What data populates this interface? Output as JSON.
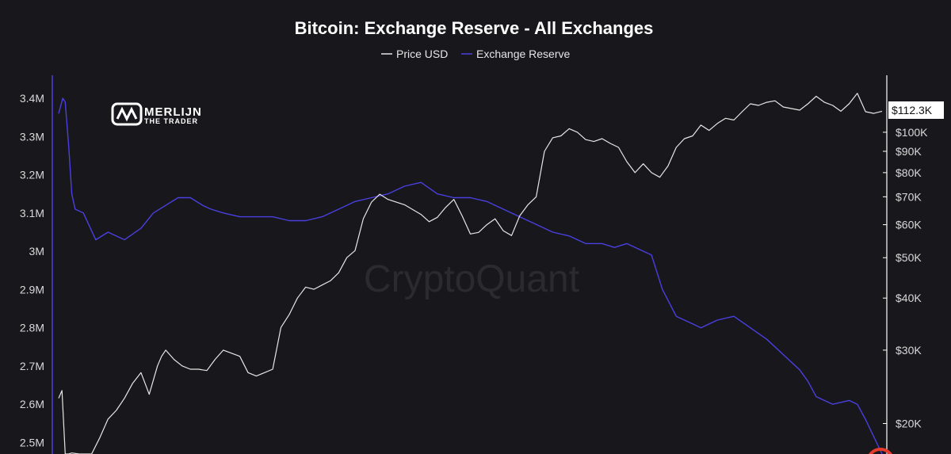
{
  "chart_data": {
    "type": "line",
    "title": "Bitcoin: Exchange Reserve - All Exchanges",
    "legend": {
      "placement": "top-center",
      "entries": [
        {
          "name": "Price USD",
          "color": "#e6e6e6"
        },
        {
          "name": "Exchange Reserve",
          "color": "#4a3fe0"
        }
      ]
    },
    "watermark": "CryptoQuant",
    "logo": {
      "line1": "MERLIJN",
      "line2": "THE TRADER"
    },
    "last_price_label": "$112.3K",
    "grid": false,
    "left_axis": {
      "scale": "linear",
      "range": [
        2470000,
        3460000
      ],
      "ticks": [
        {
          "value": 3400000,
          "label": "3.4M"
        },
        {
          "value": 3300000,
          "label": "3.3M"
        },
        {
          "value": 3200000,
          "label": "3.2M"
        },
        {
          "value": 3100000,
          "label": "3.1M"
        },
        {
          "value": 3000000,
          "label": "3M"
        },
        {
          "value": 2900000,
          "label": "2.9M"
        },
        {
          "value": 2800000,
          "label": "2.8M"
        },
        {
          "value": 2700000,
          "label": "2.7M"
        },
        {
          "value": 2600000,
          "label": "2.6M"
        },
        {
          "value": 2500000,
          "label": "2.5M"
        }
      ]
    },
    "right_axis": {
      "scale": "log",
      "range": [
        16900,
        137000
      ],
      "ticks": [
        {
          "value": 100000,
          "label": "$100K"
        },
        {
          "value": 90000,
          "label": "$90K"
        },
        {
          "value": 80000,
          "label": "$80K"
        },
        {
          "value": 70000,
          "label": "$70K"
        },
        {
          "value": 60000,
          "label": "$60K"
        },
        {
          "value": 50000,
          "label": "$50K"
        },
        {
          "value": 40000,
          "label": "$40K"
        },
        {
          "value": 30000,
          "label": "$30K"
        },
        {
          "value": 20000,
          "label": "$20K"
        }
      ]
    },
    "series": [
      {
        "name": "Exchange Reserve",
        "axis": "left",
        "color": "#4a3fe0",
        "t": [
          0,
          0.005,
          0.008,
          0.012,
          0.016,
          0.02,
          0.03,
          0.045,
          0.06,
          0.08,
          0.1,
          0.115,
          0.13,
          0.145,
          0.16,
          0.175,
          0.185,
          0.2,
          0.22,
          0.24,
          0.26,
          0.28,
          0.3,
          0.32,
          0.34,
          0.36,
          0.38,
          0.4,
          0.42,
          0.44,
          0.46,
          0.48,
          0.5,
          0.52,
          0.54,
          0.56,
          0.58,
          0.6,
          0.62,
          0.64,
          0.66,
          0.675,
          0.69,
          0.7,
          0.72,
          0.7333,
          0.75,
          0.77,
          0.78,
          0.8,
          0.82,
          0.84,
          0.86,
          0.88,
          0.9,
          0.91,
          0.92,
          0.94,
          0.96,
          0.97,
          0.98,
          1.0
        ],
        "values": [
          3360000,
          3400000,
          3390000,
          3280000,
          3150000,
          3110000,
          3100000,
          3030000,
          3050000,
          3030000,
          3060000,
          3100000,
          3120000,
          3140000,
          3140000,
          3120000,
          3110000,
          3100000,
          3090000,
          3090000,
          3090000,
          3080000,
          3080000,
          3090000,
          3110000,
          3130000,
          3140000,
          3150000,
          3170000,
          3180000,
          3150000,
          3140000,
          3140000,
          3130000,
          3110000,
          3090000,
          3070000,
          3050000,
          3040000,
          3020000,
          3020000,
          3010000,
          3020000,
          3010000,
          2990000,
          2900000,
          2830000,
          2810000,
          2800000,
          2820000,
          2830000,
          2800000,
          2770000,
          2730000,
          2690000,
          2660000,
          2620000,
          2600000,
          2610000,
          2600000,
          2560000,
          2470000
        ]
      },
      {
        "name": "Price USD",
        "axis": "right",
        "color": "#e6e6e6",
        "t": [
          0,
          0.004,
          0.008,
          0.012,
          0.016,
          0.025,
          0.04,
          0.05,
          0.06,
          0.07,
          0.08,
          0.09,
          0.1,
          0.11,
          0.12,
          0.125,
          0.13,
          0.14,
          0.15,
          0.16,
          0.17,
          0.18,
          0.19,
          0.2,
          0.21,
          0.22,
          0.23,
          0.24,
          0.25,
          0.26,
          0.27,
          0.28,
          0.29,
          0.3,
          0.31,
          0.32,
          0.33,
          0.34,
          0.35,
          0.36,
          0.37,
          0.38,
          0.39,
          0.4,
          0.42,
          0.44,
          0.45,
          0.46,
          0.47,
          0.48,
          0.49,
          0.5,
          0.51,
          0.52,
          0.53,
          0.54,
          0.55,
          0.56,
          0.57,
          0.58,
          0.59,
          0.6,
          0.61,
          0.62,
          0.63,
          0.64,
          0.65,
          0.66,
          0.67,
          0.68,
          0.69,
          0.7,
          0.71,
          0.72,
          0.73,
          0.74,
          0.75,
          0.76,
          0.77,
          0.78,
          0.79,
          0.8,
          0.81,
          0.82,
          0.83,
          0.84,
          0.85,
          0.86,
          0.87,
          0.88,
          0.89,
          0.9,
          0.91,
          0.92,
          0.93,
          0.94,
          0.95,
          0.96,
          0.97,
          0.98,
          0.99,
          1.0
        ],
        "values": [
          23000,
          24000,
          16900,
          16900,
          17000,
          16900,
          16900,
          18500,
          20500,
          21500,
          23000,
          25000,
          26500,
          23500,
          27500,
          29000,
          30000,
          28500,
          27500,
          27000,
          27000,
          26800,
          28500,
          30000,
          29500,
          29000,
          26500,
          26000,
          26500,
          27000,
          34000,
          36500,
          40000,
          42500,
          42000,
          43000,
          44000,
          46000,
          50000,
          52000,
          62000,
          68000,
          71000,
          69000,
          67000,
          63500,
          61000,
          62500,
          66000,
          69000,
          63000,
          57000,
          57500,
          60000,
          62000,
          58000,
          56500,
          63000,
          67000,
          70000,
          90000,
          97000,
          98000,
          102000,
          100000,
          96000,
          95000,
          96500,
          94000,
          92000,
          85000,
          80000,
          84000,
          80000,
          78000,
          83000,
          92000,
          96500,
          98000,
          104000,
          101000,
          105000,
          108000,
          107000,
          112000,
          117000,
          116000,
          118000,
          119000,
          115000,
          114000,
          113000,
          117000,
          122000,
          118000,
          116000,
          112300,
          117000,
          124000,
          112000,
          111000,
          112300
        ]
      }
    ]
  }
}
